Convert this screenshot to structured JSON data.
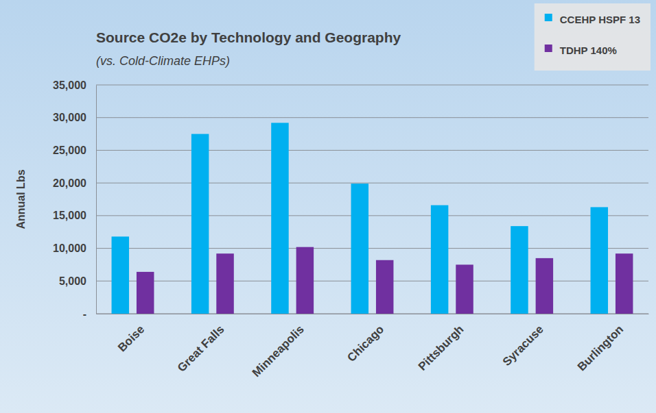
{
  "chart_data": {
    "type": "bar",
    "title": "Source CO2e by Technology and Geography",
    "subtitle": "(vs. Cold-Climate EHPs)",
    "y_label": "Annual Lbs",
    "categories": [
      "Boise",
      "Great Falls",
      "Minneapolis",
      "Chicago",
      "Pittsburgh",
      "Syracuse",
      "Burlington"
    ],
    "series": [
      {
        "name": "CCEHP HSPF 13",
        "color": "#00b0f0",
        "values": [
          11800,
          27500,
          29200,
          19900,
          16600,
          13400,
          16300
        ]
      },
      {
        "name": "TDHP 140%",
        "color": "#7030a0",
        "values": [
          6400,
          9200,
          10200,
          8200,
          7500,
          8500,
          9200
        ]
      }
    ],
    "ylim": [
      0,
      35000
    ],
    "yticks": [
      {
        "value": 0,
        "label": "-"
      },
      {
        "value": 5000,
        "label": "5,000"
      },
      {
        "value": 10000,
        "label": "10,000"
      },
      {
        "value": 15000,
        "label": "15,000"
      },
      {
        "value": 20000,
        "label": "20,000"
      },
      {
        "value": 25000,
        "label": "25,000"
      },
      {
        "value": 30000,
        "label": "30,000"
      },
      {
        "value": 35000,
        "label": "35,000"
      }
    ],
    "grid": true,
    "legend": "upper right"
  }
}
